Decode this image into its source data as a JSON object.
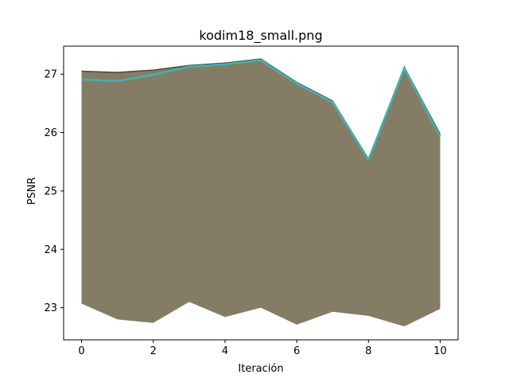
{
  "chart_data": {
    "type": "line",
    "title": "kodim18_small.png",
    "xlabel": "Iteración",
    "ylabel": "PSNR",
    "xlim": [
      -0.5,
      10.5
    ],
    "ylim": [
      22.45,
      27.48
    ],
    "x_ticks": [
      0,
      2,
      4,
      6,
      8,
      10
    ],
    "y_ticks": [
      23,
      24,
      25,
      26,
      27
    ],
    "x_tick_labels": [
      "0",
      "2",
      "4",
      "6",
      "8",
      "10"
    ],
    "y_tick_labels": [
      "23",
      "24",
      "25",
      "26",
      "27"
    ],
    "grid": false,
    "x": [
      0,
      1,
      2,
      3,
      4,
      5,
      6,
      7,
      8,
      9,
      10
    ],
    "line_color": "#3fb3b3",
    "fill_color": "#857c66",
    "band_upper": [
      27.05,
      27.03,
      27.07,
      27.15,
      27.19,
      27.26,
      26.86,
      26.54,
      25.55,
      27.12,
      25.97
    ],
    "band_lower": [
      23.07,
      22.8,
      22.74,
      23.1,
      22.84,
      23.0,
      22.71,
      22.93,
      22.86,
      22.68,
      22.98
    ],
    "values": [
      26.91,
      26.88,
      26.99,
      27.13,
      27.17,
      27.24,
      26.84,
      26.52,
      25.53,
      27.1,
      25.93
    ]
  }
}
